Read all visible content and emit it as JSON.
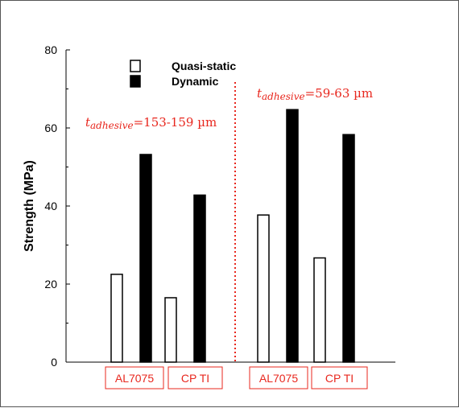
{
  "chart_data": {
    "type": "bar",
    "ylabel": "Strength (MPa)",
    "ylim": [
      0,
      80
    ],
    "yticks": [
      0,
      20,
      40,
      60,
      80
    ],
    "grid": false,
    "legend_position": "top-left",
    "categories": [
      "AL7075",
      "CP TI",
      "AL7075",
      "CP TI"
    ],
    "series": [
      {
        "name": "Quasi-static",
        "values": [
          22.5,
          16.5,
          37.7,
          26.7
        ],
        "fill": "#ffffff",
        "stroke": "#000000"
      },
      {
        "name": "Dynamic",
        "values": [
          53.2,
          42.8,
          64.7,
          58.3
        ],
        "fill": "#000000",
        "stroke": "#000000"
      }
    ],
    "groups": [
      {
        "annotation": {
          "var": "t",
          "sub": "adhesive",
          "rest": "=153-159 µm"
        }
      },
      {
        "annotation": {
          "var": "t",
          "sub": "adhesive",
          "rest": "=59-63 µm"
        }
      }
    ],
    "colors": {
      "annotation": "#e8271e",
      "category_box": "#e8271e",
      "divider": "#e8271e"
    }
  }
}
